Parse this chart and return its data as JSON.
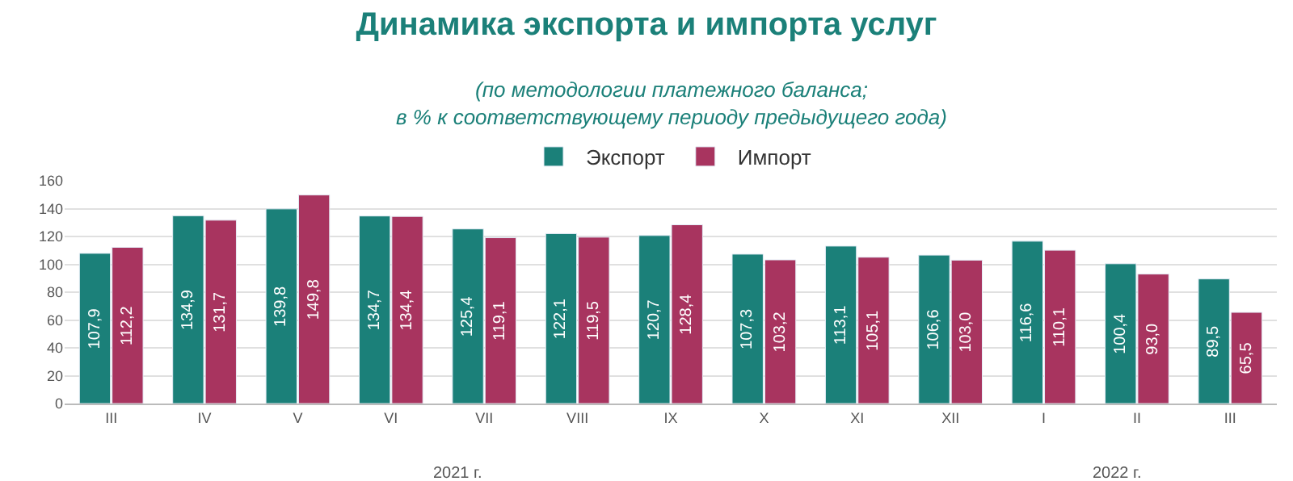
{
  "chart_data": {
    "type": "bar",
    "title": "Динамика экспорта и импорта услуг",
    "subtitle": "(по методологии платежного баланса;\nв % к соответствующему периоду предыдущего года)",
    "categories": [
      "III",
      "IV",
      "V",
      "VI",
      "VII",
      "VIII",
      "IX",
      "X",
      "XI",
      "XII",
      "I",
      "II",
      "III"
    ],
    "series": [
      {
        "name": "Экспорт",
        "color": "#1b8079",
        "values": [
          107.9,
          134.9,
          139.8,
          134.7,
          125.4,
          122.1,
          120.7,
          107.3,
          113.1,
          106.6,
          116.6,
          100.4,
          89.5
        ],
        "value_labels": [
          "107,9",
          "134,9",
          "139,8",
          "134,7",
          "125,4",
          "122,1",
          "120,7",
          "107,3",
          "113,1",
          "106,6",
          "116,6",
          "100,4",
          "89,5"
        ]
      },
      {
        "name": "Импорт",
        "color": "#a8345f",
        "values": [
          112.2,
          131.7,
          149.8,
          134.4,
          119.1,
          119.5,
          128.4,
          103.2,
          105.1,
          103.0,
          110.1,
          93.0,
          65.5
        ],
        "value_labels": [
          "112,2",
          "131,7",
          "149,8",
          "134,4",
          "119,1",
          "119,5",
          "128,4",
          "103,2",
          "105,1",
          "103,0",
          "110,1",
          "93,0",
          "65,5"
        ]
      }
    ],
    "annotations": [
      "2021 г.",
      "2022 г."
    ],
    "ylim": [
      0,
      160
    ],
    "yticks": [
      0,
      20,
      40,
      60,
      80,
      100,
      120,
      140,
      160
    ],
    "grid": "y",
    "legend": "top"
  }
}
